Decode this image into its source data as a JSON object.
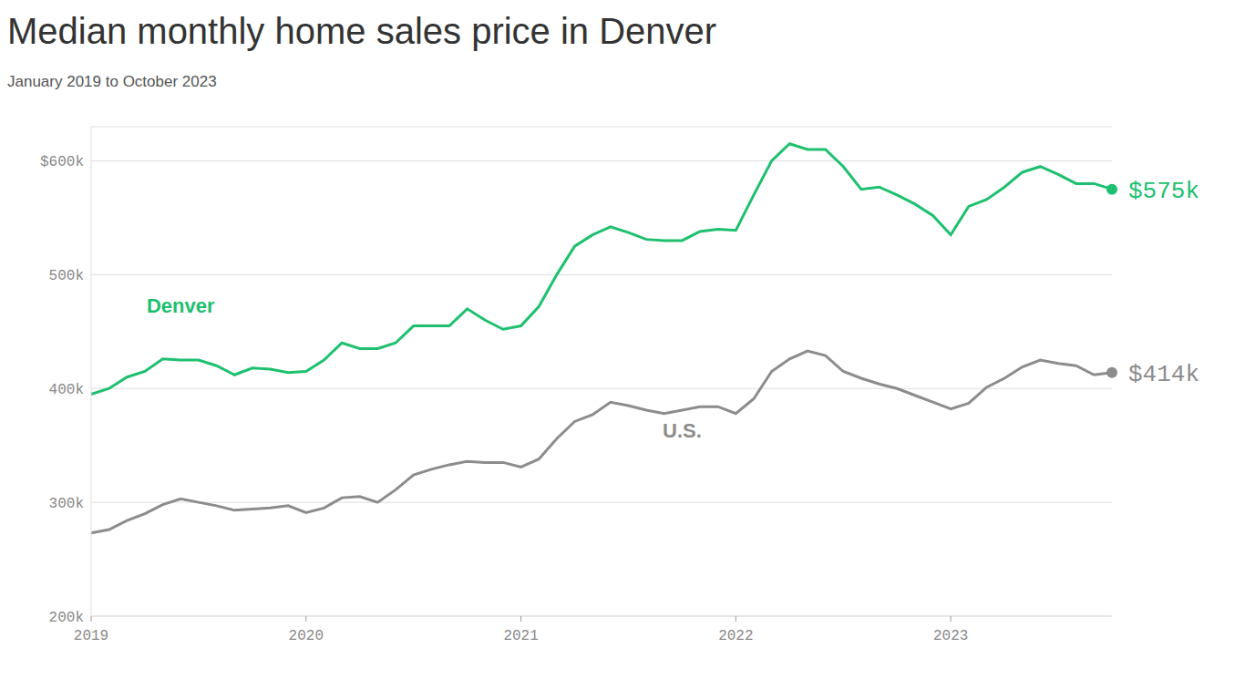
{
  "chart_data": {
    "type": "line",
    "title": "Median monthly home sales price in Denver",
    "subtitle": "January 2019 to October 2023",
    "categories": [
      "2019",
      null,
      null,
      null,
      null,
      null,
      null,
      null,
      null,
      null,
      null,
      null,
      "2020",
      null,
      null,
      null,
      null,
      null,
      null,
      null,
      null,
      null,
      null,
      null,
      "2021",
      null,
      null,
      null,
      null,
      null,
      null,
      null,
      null,
      null,
      null,
      null,
      "2022",
      null,
      null,
      null,
      null,
      null,
      null,
      null,
      null,
      null,
      null,
      null,
      "2023",
      null,
      null,
      null,
      null,
      null,
      null,
      null,
      null,
      null
    ],
    "series": [
      {
        "name": "Denver",
        "color": "#1ec06f",
        "values": [
          395000,
          400000,
          410000,
          415000,
          426000,
          425000,
          425000,
          420000,
          412000,
          418000,
          417000,
          414000,
          415000,
          425000,
          440000,
          435000,
          435000,
          440000,
          455000,
          455000,
          455000,
          470000,
          460000,
          452000,
          455000,
          472000,
          500000,
          525000,
          535000,
          542000,
          537000,
          531000,
          530000,
          530000,
          538000,
          540000,
          539000,
          570000,
          600000,
          615000,
          610000,
          610000,
          595000,
          575000,
          577000,
          570000,
          562000,
          552000,
          535000,
          560000,
          566000,
          577000,
          590000,
          595000,
          588000,
          580000,
          580000,
          575000
        ],
        "value_labels": [
          null,
          null,
          null,
          null,
          null,
          null,
          null,
          null,
          null,
          null,
          null,
          null,
          null,
          null,
          null,
          null,
          null,
          null,
          null,
          null,
          null,
          null,
          null,
          null,
          null,
          null,
          null,
          null,
          null,
          null,
          null,
          null,
          null,
          null,
          null,
          null,
          null,
          null,
          null,
          null,
          null,
          null,
          null,
          null,
          null,
          null,
          null,
          null,
          null,
          null,
          null,
          null,
          null,
          null,
          null,
          null,
          null,
          "$575k"
        ]
      },
      {
        "name": "U.S.",
        "color": "#8c8c8c",
        "values": [
          273000,
          276000,
          284000,
          290000,
          298000,
          303000,
          300000,
          297000,
          293000,
          294000,
          295000,
          297000,
          291000,
          295000,
          304000,
          305000,
          300000,
          311000,
          324000,
          329000,
          333000,
          336000,
          335000,
          335000,
          331000,
          338000,
          356000,
          371000,
          377000,
          388000,
          385000,
          381000,
          378000,
          381000,
          384000,
          384000,
          378000,
          391000,
          415000,
          426000,
          433000,
          429000,
          415000,
          409000,
          404000,
          400000,
          394000,
          388000,
          382000,
          387000,
          401000,
          409000,
          419000,
          425000,
          422000,
          420000,
          412000,
          414000
        ],
        "value_labels": [
          null,
          null,
          null,
          null,
          null,
          null,
          null,
          null,
          null,
          null,
          null,
          null,
          null,
          null,
          null,
          null,
          null,
          null,
          null,
          null,
          null,
          null,
          null,
          null,
          null,
          null,
          null,
          null,
          null,
          null,
          null,
          null,
          null,
          null,
          null,
          null,
          null,
          null,
          null,
          null,
          null,
          null,
          null,
          null,
          null,
          null,
          null,
          null,
          null,
          null,
          null,
          null,
          null,
          null,
          null,
          null,
          null,
          "$414k"
        ]
      }
    ],
    "ylim": [
      200000,
      630000
    ],
    "yticks": [
      {
        "value": 200000,
        "label": "200k"
      },
      {
        "value": 300000,
        "label": "300k"
      },
      {
        "value": 400000,
        "label": "400k"
      },
      {
        "value": 500000,
        "label": "500k"
      },
      {
        "value": 600000,
        "label": "$600k"
      }
    ],
    "grid": true
  }
}
